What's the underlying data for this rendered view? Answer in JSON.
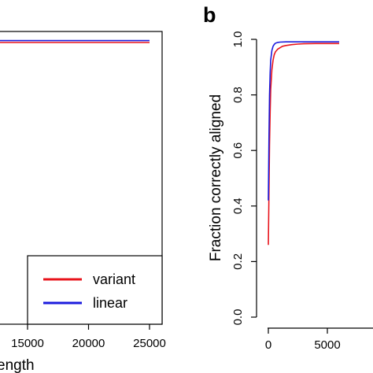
{
  "chart_data": [
    {
      "type": "line",
      "panel": "",
      "xlabel": "ength",
      "ylabel": "",
      "x_ticks": [
        15000,
        20000,
        25000
      ],
      "grid": false,
      "legend": {
        "placement": "bottom-right",
        "entries": [
          {
            "name": "variant",
            "color": "#e8131b"
          },
          {
            "name": "linear",
            "color": "#1b1bdd"
          }
        ]
      },
      "series": [
        {
          "name": "variant",
          "color": "#e8131b",
          "x": [
            10000,
            25000
          ],
          "y": [
            0.985,
            0.985
          ]
        },
        {
          "name": "linear",
          "color": "#1b1bdd",
          "x": [
            10000,
            25000
          ],
          "y": [
            0.991,
            0.991
          ]
        }
      ]
    },
    {
      "type": "line",
      "panel": "b",
      "xlabel": "",
      "ylabel": "Fraction correctly aligned",
      "x_ticks": [
        0,
        5000
      ],
      "y_ticks": [
        "0.0",
        "0.2",
        "0.4",
        "0.6",
        "0.8",
        "1.0"
      ],
      "ylim": [
        0,
        1
      ],
      "grid": false,
      "series": [
        {
          "name": "variant",
          "color": "#e8131b",
          "x": [
            0,
            50,
            100,
            150,
            200,
            300,
            400,
            500,
            600,
            800,
            1000,
            1200,
            1500,
            2000,
            2500,
            3000,
            4000,
            5000,
            6000
          ],
          "y": [
            0.26,
            0.45,
            0.62,
            0.74,
            0.82,
            0.89,
            0.925,
            0.945,
            0.955,
            0.965,
            0.97,
            0.975,
            0.978,
            0.981,
            0.983,
            0.984,
            0.985,
            0.985,
            0.985
          ]
        },
        {
          "name": "linear",
          "color": "#1b1bdd",
          "x": [
            0,
            50,
            100,
            150,
            200,
            300,
            400,
            500,
            600,
            800,
            1000,
            1500,
            2000,
            3000,
            4000,
            5000,
            6000
          ],
          "y": [
            0.42,
            0.65,
            0.8,
            0.88,
            0.925,
            0.96,
            0.975,
            0.982,
            0.986,
            0.989,
            0.99,
            0.991,
            0.991,
            0.991,
            0.991,
            0.991,
            0.991
          ]
        }
      ]
    }
  ]
}
